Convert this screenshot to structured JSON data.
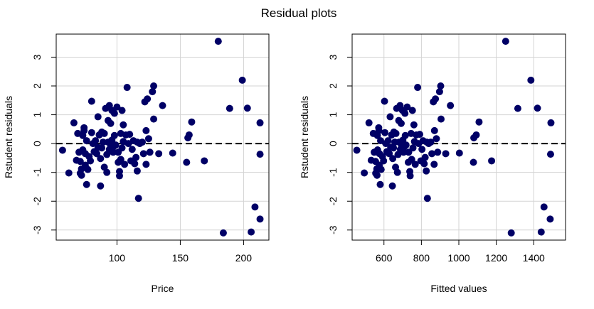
{
  "title": "Residual plots",
  "colors": {
    "points": "#000066",
    "grid": "#d3d3d3",
    "reference_line": "#000000"
  },
  "chart_data": [
    {
      "type": "scatter",
      "xlabel": "Price",
      "ylabel": "Rstudent residuals",
      "xlim": [
        52,
        220
      ],
      "ylim": [
        -3.35,
        3.8
      ],
      "xticks": [
        100,
        150,
        200
      ],
      "yticks": [
        -3,
        -2,
        -1,
        0,
        1,
        2,
        3
      ],
      "grid": true,
      "reference_line": {
        "y": 0,
        "style": "dashed"
      },
      "points": [
        [
          57,
          -0.23
        ],
        [
          62,
          -1.02
        ],
        [
          66,
          0.72
        ],
        [
          68,
          -0.58
        ],
        [
          69,
          0.35
        ],
        [
          70,
          -0.3
        ],
        [
          71,
          -0.62
        ],
        [
          71,
          -1.03
        ],
        [
          72,
          -0.88
        ],
        [
          72,
          -1.1
        ],
        [
          73,
          0.28
        ],
        [
          73,
          -0.22
        ],
        [
          74,
          0.55
        ],
        [
          74,
          0.45
        ],
        [
          75,
          -0.75
        ],
        [
          75,
          -0.35
        ],
        [
          76,
          -1.42
        ],
        [
          76,
          0.1
        ],
        [
          77,
          -0.9
        ],
        [
          78,
          -0.45
        ],
        [
          79,
          -0.6
        ],
        [
          80,
          1.47
        ],
        [
          80,
          0.38
        ],
        [
          81,
          0.0
        ],
        [
          82,
          -0.28
        ],
        [
          83,
          0.1
        ],
        [
          84,
          -0.35
        ],
        [
          85,
          0.93
        ],
        [
          85,
          -0.13
        ],
        [
          86,
          0.3
        ],
        [
          87,
          -1.47
        ],
        [
          87,
          -0.52
        ],
        [
          88,
          -0.15
        ],
        [
          88,
          0.4
        ],
        [
          89,
          0.05
        ],
        [
          90,
          -0.82
        ],
        [
          90,
          0.35
        ],
        [
          91,
          1.22
        ],
        [
          92,
          -1.0
        ],
        [
          92,
          -0.38
        ],
        [
          93,
          0.8
        ],
        [
          93,
          0.05
        ],
        [
          94,
          1.32
        ],
        [
          94,
          -0.2
        ],
        [
          95,
          0.7
        ],
        [
          95,
          -0.05
        ],
        [
          96,
          1.15
        ],
        [
          96,
          0.12
        ],
        [
          97,
          -0.3
        ],
        [
          97,
          -0.12
        ],
        [
          98,
          1.05
        ],
        [
          98,
          0.28
        ],
        [
          99,
          -0.05
        ],
        [
          100,
          1.27
        ],
        [
          101,
          -0.65
        ],
        [
          101,
          -0.3
        ],
        [
          102,
          -0.97
        ],
        [
          102,
          -1.12
        ],
        [
          103,
          0.35
        ],
        [
          103,
          -0.55
        ],
        [
          104,
          1.15
        ],
        [
          104,
          -0.15
        ],
        [
          105,
          0.65
        ],
        [
          105,
          0.07
        ],
        [
          106,
          -0.72
        ],
        [
          107,
          0.3
        ],
        [
          108,
          1.95
        ],
        [
          109,
          0.0
        ],
        [
          110,
          0.32
        ],
        [
          111,
          -0.6
        ],
        [
          112,
          -0.2
        ],
        [
          113,
          0.1
        ],
        [
          114,
          -0.7
        ],
        [
          115,
          -0.48
        ],
        [
          116,
          -0.95
        ],
        [
          116,
          0.05
        ],
        [
          117,
          -1.9
        ],
        [
          118,
          0.0
        ],
        [
          120,
          0.05
        ],
        [
          121,
          -0.35
        ],
        [
          122,
          1.45
        ],
        [
          123,
          -0.72
        ],
        [
          123,
          0.45
        ],
        [
          124,
          1.55
        ],
        [
          125,
          0.17
        ],
        [
          126,
          -0.3
        ],
        [
          128,
          1.8
        ],
        [
          129,
          2.0
        ],
        [
          129,
          0.85
        ],
        [
          133,
          -0.35
        ],
        [
          136,
          1.32
        ],
        [
          144,
          -0.33
        ],
        [
          155,
          -0.65
        ],
        [
          156,
          0.2
        ],
        [
          157,
          0.3
        ],
        [
          159,
          0.75
        ],
        [
          169,
          -0.6
        ],
        [
          180,
          3.55
        ],
        [
          184,
          -3.1
        ],
        [
          189,
          1.22
        ],
        [
          199,
          2.2
        ],
        [
          203,
          1.23
        ],
        [
          206,
          -3.07
        ],
        [
          209,
          -2.2
        ],
        [
          213,
          -2.62
        ],
        [
          213,
          -0.37
        ],
        [
          213,
          0.72
        ]
      ]
    },
    {
      "type": "scatter",
      "xlabel": "Fitted values",
      "ylabel": "Rstudent residuals",
      "xlim": [
        430,
        1570
      ],
      "ylim": [
        -3.35,
        3.8
      ],
      "xticks": [
        600,
        800,
        1000,
        1200,
        1400
      ],
      "yticks": [
        -3,
        -2,
        -1,
        0,
        1,
        2,
        3
      ],
      "grid": true,
      "reference_line": {
        "y": 0,
        "style": "dashed"
      },
      "points": [
        [
          455,
          -0.23
        ],
        [
          495,
          -1.02
        ],
        [
          520,
          0.72
        ],
        [
          532,
          -0.58
        ],
        [
          543,
          0.35
        ],
        [
          548,
          -0.3
        ],
        [
          555,
          -0.62
        ],
        [
          556,
          -1.03
        ],
        [
          562,
          -0.88
        ],
        [
          563,
          -1.1
        ],
        [
          565,
          0.28
        ],
        [
          566,
          -0.22
        ],
        [
          572,
          0.55
        ],
        [
          573,
          0.45
        ],
        [
          575,
          -0.75
        ],
        [
          576,
          -0.35
        ],
        [
          580,
          -1.42
        ],
        [
          582,
          0.1
        ],
        [
          585,
          -0.9
        ],
        [
          592,
          -0.45
        ],
        [
          598,
          -0.6
        ],
        [
          603,
          1.47
        ],
        [
          605,
          0.38
        ],
        [
          610,
          0.0
        ],
        [
          615,
          -0.28
        ],
        [
          622,
          0.1
        ],
        [
          628,
          -0.35
        ],
        [
          633,
          0.93
        ],
        [
          636,
          -0.13
        ],
        [
          641,
          0.3
        ],
        [
          645,
          -1.47
        ],
        [
          647,
          -0.52
        ],
        [
          651,
          -0.15
        ],
        [
          653,
          0.4
        ],
        [
          658,
          0.05
        ],
        [
          662,
          -0.82
        ],
        [
          664,
          0.35
        ],
        [
          668,
          1.22
        ],
        [
          672,
          -1.0
        ],
        [
          675,
          -0.38
        ],
        [
          679,
          0.8
        ],
        [
          681,
          0.05
        ],
        [
          686,
          1.32
        ],
        [
          688,
          -0.2
        ],
        [
          692,
          0.7
        ],
        [
          694,
          -0.05
        ],
        [
          699,
          1.15
        ],
        [
          701,
          0.12
        ],
        [
          705,
          -0.3
        ],
        [
          707,
          -0.12
        ],
        [
          712,
          1.05
        ],
        [
          714,
          0.28
        ],
        [
          718,
          -0.05
        ],
        [
          724,
          1.27
        ],
        [
          730,
          -0.65
        ],
        [
          732,
          -0.3
        ],
        [
          738,
          -0.97
        ],
        [
          740,
          -1.12
        ],
        [
          745,
          0.35
        ],
        [
          748,
          -0.55
        ],
        [
          752,
          1.15
        ],
        [
          755,
          -0.15
        ],
        [
          760,
          0.65
        ],
        [
          763,
          0.07
        ],
        [
          767,
          -0.72
        ],
        [
          773,
          0.3
        ],
        [
          780,
          1.95
        ],
        [
          785,
          0.0
        ],
        [
          791,
          0.32
        ],
        [
          797,
          -0.6
        ],
        [
          803,
          -0.2
        ],
        [
          809,
          0.1
        ],
        [
          815,
          -0.7
        ],
        [
          820,
          -0.48
        ],
        [
          826,
          -0.95
        ],
        [
          829,
          0.05
        ],
        [
          832,
          -1.9
        ],
        [
          839,
          0.0
        ],
        [
          850,
          0.05
        ],
        [
          856,
          -0.35
        ],
        [
          864,
          1.45
        ],
        [
          868,
          -0.72
        ],
        [
          870,
          0.45
        ],
        [
          875,
          1.55
        ],
        [
          880,
          0.17
        ],
        [
          887,
          -0.3
        ],
        [
          897,
          1.8
        ],
        [
          903,
          2.0
        ],
        [
          905,
          0.85
        ],
        [
          930,
          -0.35
        ],
        [
          955,
          1.32
        ],
        [
          1003,
          -0.33
        ],
        [
          1078,
          -0.65
        ],
        [
          1080,
          0.2
        ],
        [
          1093,
          0.3
        ],
        [
          1108,
          0.75
        ],
        [
          1175,
          -0.6
        ],
        [
          1250,
          3.55
        ],
        [
          1280,
          -3.1
        ],
        [
          1315,
          1.22
        ],
        [
          1385,
          2.2
        ],
        [
          1420,
          1.23
        ],
        [
          1440,
          -3.07
        ],
        [
          1455,
          -2.2
        ],
        [
          1488,
          -2.62
        ],
        [
          1490,
          -0.37
        ],
        [
          1492,
          0.72
        ]
      ]
    }
  ]
}
